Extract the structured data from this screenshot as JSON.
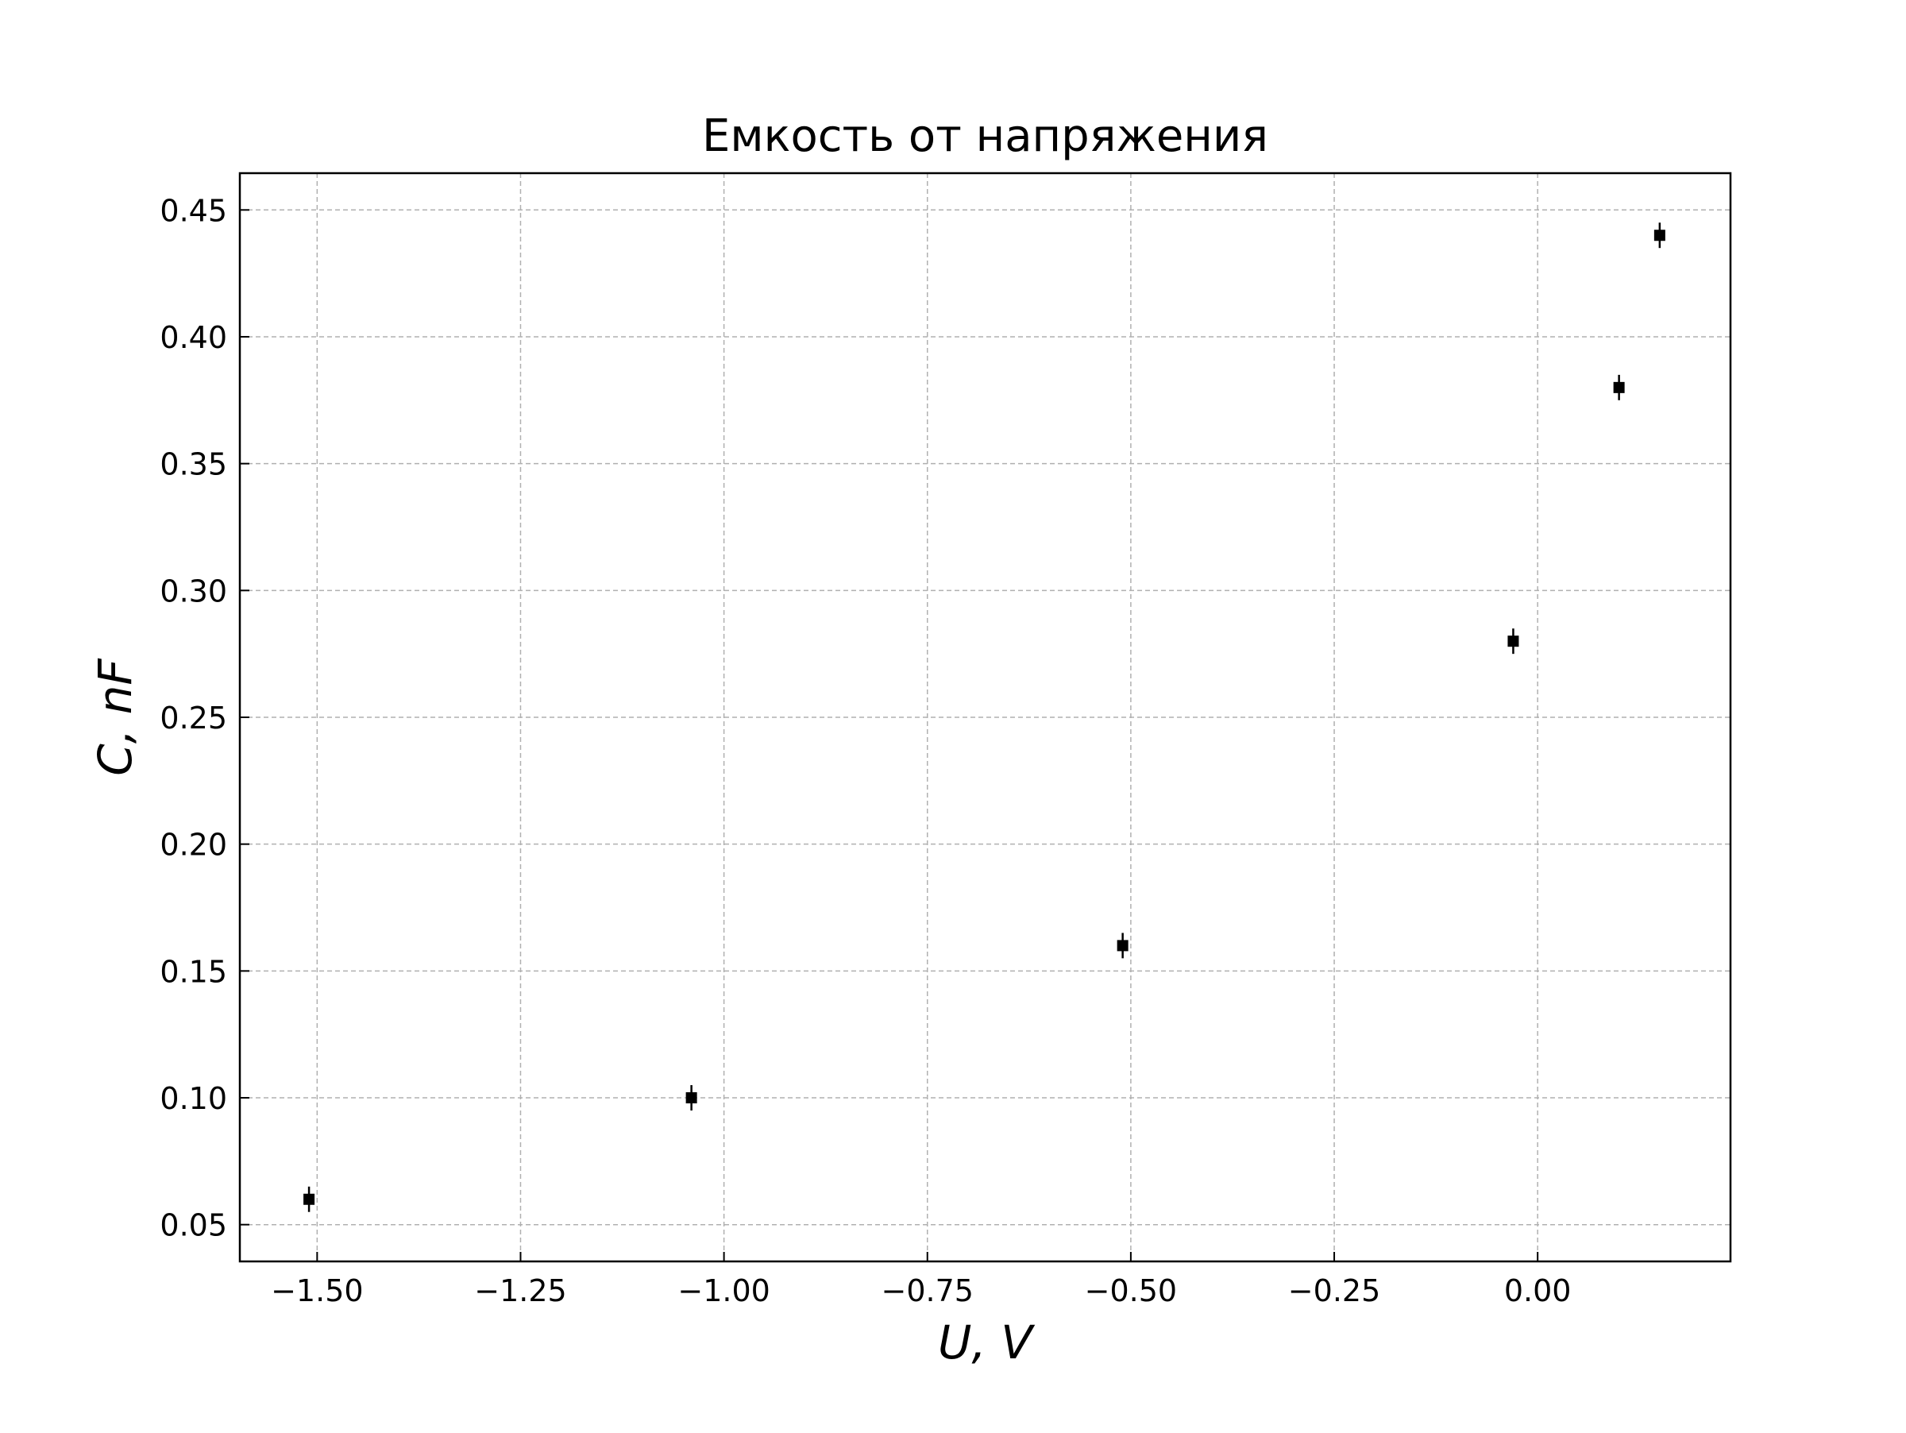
{
  "chart_data": {
    "type": "scatter",
    "title": "Емкость от напряжения",
    "xlabel": "U, V",
    "ylabel": "C, nF",
    "xlim": [
      -1.595,
      0.237
    ],
    "ylim": [
      0.0355,
      0.4645
    ],
    "xticks": [
      -1.5,
      -1.25,
      -1.0,
      -0.75,
      -0.5,
      -0.25,
      0.0
    ],
    "xtick_labels": [
      "−1.50",
      "−1.25",
      "−1.00",
      "−0.75",
      "−0.50",
      "−0.25",
      "0.00"
    ],
    "yticks": [
      0.05,
      0.1,
      0.15,
      0.2,
      0.25,
      0.3,
      0.35,
      0.4,
      0.45
    ],
    "ytick_labels": [
      "0.05",
      "0.10",
      "0.15",
      "0.20",
      "0.25",
      "0.30",
      "0.35",
      "0.40",
      "0.45"
    ],
    "grid": true,
    "marker_color": "#000000",
    "points": [
      {
        "x": -1.51,
        "y": 0.06,
        "yerr": 0.005
      },
      {
        "x": -1.04,
        "y": 0.1,
        "yerr": 0.005
      },
      {
        "x": -0.51,
        "y": 0.16,
        "yerr": 0.005
      },
      {
        "x": -0.03,
        "y": 0.28,
        "yerr": 0.005
      },
      {
        "x": 0.1,
        "y": 0.38,
        "yerr": 0.005
      },
      {
        "x": 0.15,
        "y": 0.44,
        "yerr": 0.005
      }
    ]
  }
}
